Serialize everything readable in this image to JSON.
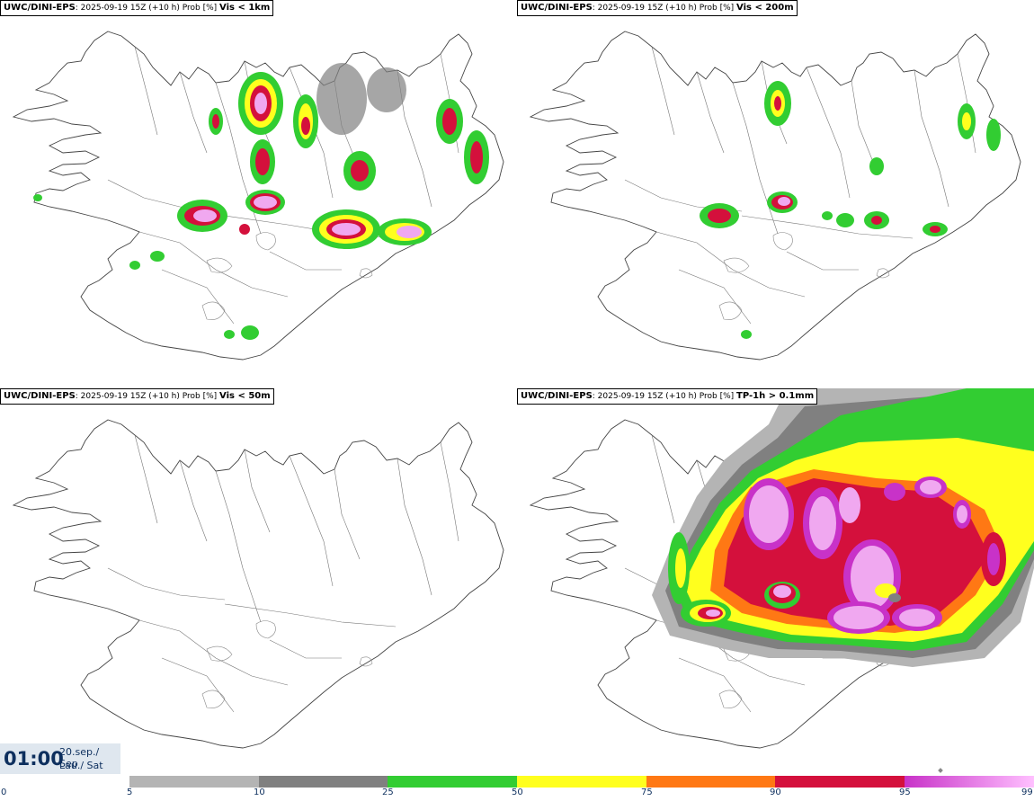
{
  "panels": [
    {
      "model": "UWC/DINI-EPS",
      "info": ": 2025-09-19 15Z (+10 h) Prob [%] ",
      "variable": "Vis < 1km"
    },
    {
      "model": "UWC/DINI-EPS",
      "info": ": 2025-09-19 15Z (+10 h) Prob [%] ",
      "variable": "Vis < 200m"
    },
    {
      "model": "UWC/DINI-EPS",
      "info": ": 2025-09-19 15Z (+10 h) Prob [%] ",
      "variable": "Vis < 50m"
    },
    {
      "model": "UWC/DINI-EPS",
      "info": ": 2025-09-19 15Z (+10 h) Prob [%] ",
      "variable": "TP-1h > 0.1mm"
    }
  ],
  "valid_time": {
    "clock": "01:00",
    "date": "20.sep./ Sep",
    "weekday": "Lau./ Sat"
  },
  "legend": {
    "ticks": [
      "0",
      "5",
      "10",
      "25",
      "50",
      "75",
      "90",
      "95",
      "99"
    ],
    "colors": [
      "#ffffff",
      "#b4b4b4",
      "#808080",
      "#32cd32",
      "#ffff1e",
      "#ff7814",
      "#d4103c",
      "#c832c8",
      "#ffc0ff"
    ]
  },
  "colors": {
    "gray_light": "#b4b4b4",
    "gray_dark": "#808080",
    "green": "#32cd32",
    "yellow": "#ffff1e",
    "orange": "#ff7814",
    "red": "#d4103c",
    "magenta": "#c832c8",
    "pink": "#f0a8f0",
    "text_blue": "#0d2f5e"
  }
}
